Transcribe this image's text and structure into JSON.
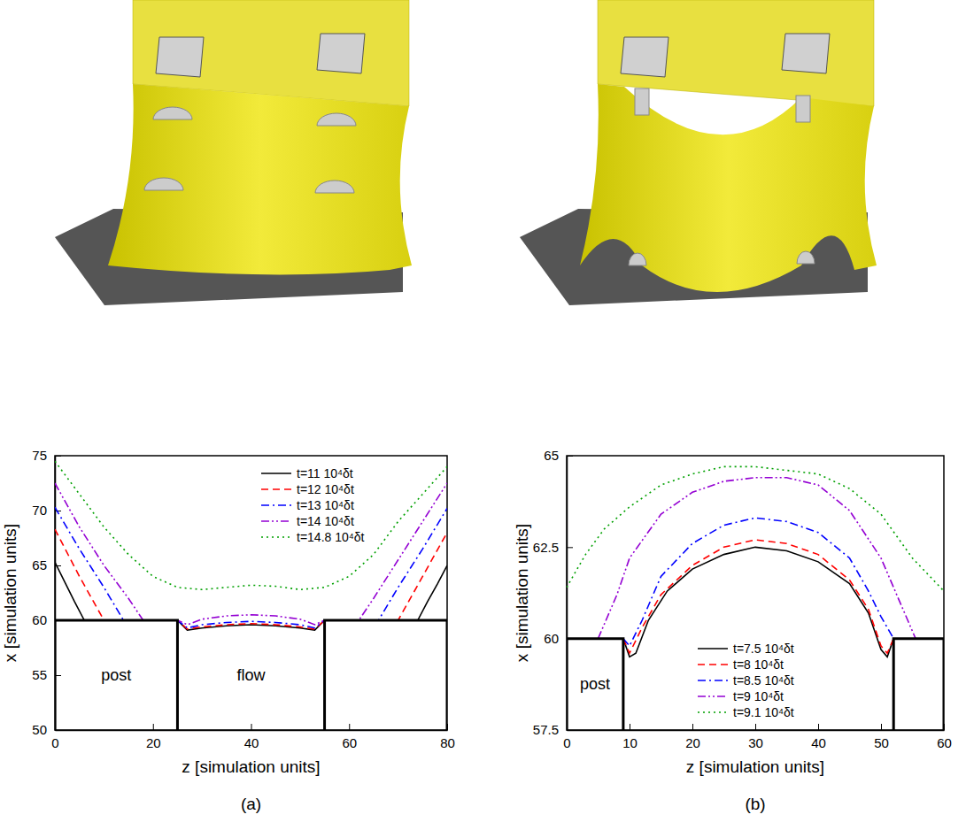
{
  "chart_data": [
    {
      "type": "line",
      "label": "(a)",
      "x_label": "z [simulation units]",
      "y_label": "x [simulation units]",
      "xlim": [
        0,
        80
      ],
      "ylim": [
        50,
        75
      ],
      "xticks": [
        0,
        20,
        40,
        60,
        80
      ],
      "yticks": [
        50,
        55,
        60,
        65,
        70,
        75
      ],
      "legend": "upper right",
      "posts": [
        [
          0,
          25
        ],
        [
          55,
          80
        ]
      ],
      "post_top": 60,
      "annotations": [
        "post",
        "flow"
      ],
      "series": [
        {
          "name": "t=11 10⁴δt",
          "color": "#000000",
          "line_style": "solid",
          "x": [
            0,
            2,
            4,
            6,
            25,
            27,
            30,
            35,
            40,
            45,
            50,
            53,
            55,
            74,
            76,
            78,
            80
          ],
          "values": [
            65.3,
            63.5,
            61.7,
            60,
            60,
            59.1,
            59.3,
            59.5,
            59.6,
            59.5,
            59.3,
            59.1,
            60,
            60,
            61.7,
            63.3,
            65
          ]
        },
        {
          "name": "t=12 10⁴δt",
          "color": "#ff0000",
          "line_style": "dashed",
          "x": [
            0,
            5,
            10,
            25,
            27,
            30,
            35,
            40,
            45,
            50,
            53,
            55,
            70,
            75,
            80
          ],
          "values": [
            68.3,
            64,
            60,
            60,
            59.2,
            59.4,
            59.6,
            59.7,
            59.6,
            59.4,
            59.2,
            60,
            60,
            64,
            68
          ]
        },
        {
          "name": "t=13 10⁴δt",
          "color": "#0000ff",
          "line_style": "dashdot",
          "x": [
            0,
            5,
            10,
            14,
            25,
            27,
            30,
            35,
            40,
            45,
            50,
            53,
            55,
            66,
            70,
            75,
            80
          ],
          "values": [
            70.3,
            66.5,
            63,
            60,
            60,
            59.3,
            59.6,
            59.8,
            59.9,
            59.8,
            59.6,
            59.3,
            60,
            60,
            63,
            66.5,
            70.2
          ]
        },
        {
          "name": "t=14 10⁴δt",
          "color": "#9400d3",
          "line_style": "dashdotdot",
          "x": [
            0,
            5,
            10,
            15,
            18,
            25,
            27,
            30,
            35,
            40,
            45,
            50,
            53,
            55,
            62,
            65,
            70,
            75,
            80
          ],
          "values": [
            72.5,
            68.5,
            65,
            62,
            60,
            60,
            59.6,
            60.1,
            60.4,
            60.5,
            60.4,
            60.1,
            59.6,
            60,
            60,
            62,
            65.5,
            69,
            72.5
          ]
        },
        {
          "name": "t=14.8 10⁴δt",
          "color": "#00a000",
          "line_style": "dotted",
          "x": [
            0,
            5,
            10,
            15,
            20,
            25,
            30,
            35,
            40,
            45,
            50,
            55,
            60,
            65,
            70,
            75,
            80
          ],
          "values": [
            74.5,
            71.5,
            68.5,
            66,
            64,
            63,
            62.8,
            63,
            63.2,
            63.1,
            62.8,
            63,
            64,
            66,
            69,
            71.5,
            74
          ]
        }
      ]
    },
    {
      "type": "line",
      "label": "(b)",
      "x_label": "z [simulation units]",
      "y_label": "x [simulation units]",
      "xlim": [
        0,
        60
      ],
      "ylim": [
        57.5,
        65
      ],
      "xticks": [
        0,
        10,
        20,
        30,
        40,
        50,
        60
      ],
      "yticks": [
        57.5,
        60,
        62.5,
        65
      ],
      "legend": "lower center",
      "posts": [
        [
          0,
          9
        ],
        [
          52,
          60
        ]
      ],
      "post_top": 60,
      "annotations": [
        "post"
      ],
      "series": [
        {
          "name": "t=7.5 10⁴δt",
          "color": "#000000",
          "line_style": "solid",
          "x": [
            9,
            10,
            11,
            13,
            16,
            20,
            25,
            30,
            35,
            40,
            45,
            48,
            50,
            51,
            52
          ],
          "values": [
            60,
            59.5,
            59.6,
            60.5,
            61.3,
            61.9,
            62.3,
            62.5,
            62.4,
            62.1,
            61.5,
            60.7,
            59.7,
            59.5,
            60
          ]
        },
        {
          "name": "t=8 10⁴δt",
          "color": "#ff0000",
          "line_style": "dashed",
          "x": [
            9,
            10,
            12,
            15,
            20,
            25,
            30,
            35,
            40,
            45,
            48,
            50,
            51,
            52
          ],
          "values": [
            60,
            59.6,
            60.3,
            61.2,
            62,
            62.5,
            62.7,
            62.6,
            62.3,
            61.6,
            60.8,
            59.8,
            59.6,
            60
          ]
        },
        {
          "name": "t=8.5 10⁴δt",
          "color": "#0000ff",
          "line_style": "dashdot",
          "x": [
            9,
            10,
            12,
            15,
            20,
            25,
            30,
            35,
            40,
            45,
            48,
            50,
            52
          ],
          "values": [
            60,
            59.8,
            60.5,
            61.7,
            62.6,
            63.1,
            63.3,
            63.2,
            62.9,
            62.2,
            61.3,
            60.6,
            60
          ]
        },
        {
          "name": "t=9 10⁴δt",
          "color": "#9400d3",
          "line_style": "dashdotdot",
          "x": [
            5,
            8,
            10,
            15,
            20,
            25,
            30,
            35,
            40,
            45,
            50,
            53,
            55.5
          ],
          "values": [
            60,
            61.2,
            62.2,
            63.4,
            64,
            64.3,
            64.4,
            64.4,
            64.2,
            63.5,
            62.2,
            61,
            60
          ]
        },
        {
          "name": "t=9.1 10⁴δt",
          "color": "#00a000",
          "line_style": "dotted",
          "x": [
            0,
            3,
            6,
            10,
            15,
            20,
            25,
            30,
            35,
            40,
            45,
            50,
            55,
            60
          ],
          "values": [
            61.4,
            62.3,
            63,
            63.6,
            64.2,
            64.5,
            64.7,
            64.7,
            64.6,
            64.5,
            64.1,
            63.4,
            62.2,
            61.3
          ]
        }
      ]
    }
  ]
}
